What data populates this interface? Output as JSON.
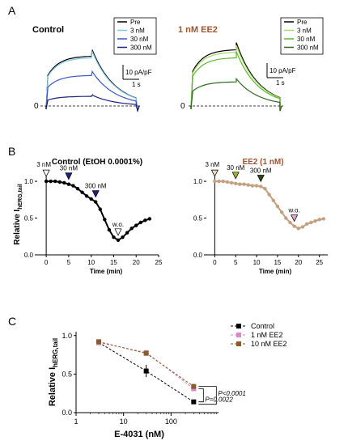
{
  "panels": {
    "A": {
      "letter": "A"
    },
    "B": {
      "letter": "B"
    },
    "C": {
      "letter": "C"
    }
  },
  "panelA": {
    "left": {
      "title": "Control"
    },
    "right": {
      "title": "1 nM EE2"
    },
    "legend_left": [
      "Pre",
      "3 nM",
      "30 nM",
      "300 nM"
    ],
    "legend_right": [
      "Pre",
      "3 nM",
      "30 nM",
      "300 nM"
    ],
    "scale_current": "10 pA/pF",
    "scale_time": "1 s",
    "zero_label": "0",
    "colors": {
      "control": [
        "#000000",
        "#7ec8e3",
        "#3a55c8",
        "#1a237e"
      ],
      "ee2": [
        "#000000",
        "#a6d96a",
        "#5cb82e",
        "#2e6b1e"
      ]
    }
  },
  "chart_data": [
    {
      "type": "line",
      "title": "Control (EtOH 0.0001%)",
      "ylabel": "Relative I",
      "ylabel_sub": "hERG,tail",
      "xlabel": "Time (min)",
      "xlim": [
        -2,
        25
      ],
      "ylim": [
        0,
        1.1
      ],
      "xticks": [
        0,
        5,
        10,
        15,
        20,
        25
      ],
      "yticks": [
        0.0,
        0.5,
        1.0
      ],
      "ytick_labels": [
        "0.0",
        "0.5",
        "1.0"
      ],
      "series": [
        {
          "color": "#000000",
          "x": [
            0,
            1,
            2,
            3,
            4,
            5,
            6,
            7,
            8,
            9,
            10,
            11,
            12,
            13,
            14,
            15,
            16,
            17,
            18,
            19,
            20,
            21,
            22,
            23
          ],
          "y": [
            1.0,
            1.0,
            1.0,
            0.99,
            0.98,
            0.96,
            0.94,
            0.9,
            0.85,
            0.8,
            0.76,
            0.72,
            0.62,
            0.48,
            0.34,
            0.24,
            0.2,
            0.24,
            0.3,
            0.36,
            0.4,
            0.44,
            0.47,
            0.49
          ]
        }
      ],
      "annotations": [
        {
          "label": "3 nM",
          "x": 0,
          "color": "#ffffff"
        },
        {
          "label": "30 nM",
          "x": 5,
          "color": "#1a237e"
        },
        {
          "label": "300 nM",
          "x": 11,
          "color": "#1a237e"
        },
        {
          "label": "w.o.",
          "x": 16,
          "color": "#ffffff"
        }
      ]
    },
    {
      "type": "line",
      "title": "EE2 (1 nM)",
      "xlabel": "Time (min)",
      "xlim": [
        -2,
        27
      ],
      "ylim": [
        0,
        1.1
      ],
      "xticks": [
        0,
        5,
        10,
        15,
        20,
        25
      ],
      "yticks": [
        0.0,
        0.5,
        1.0
      ],
      "ytick_labels": [
        "0.0",
        "0.5",
        "1.0"
      ],
      "series": [
        {
          "color": "#c2a080",
          "x": [
            0,
            1,
            2,
            3,
            4,
            5,
            6,
            7,
            8,
            9,
            10,
            11,
            12,
            13,
            14,
            15,
            16,
            17,
            18,
            19,
            20,
            21,
            22,
            23,
            24,
            25,
            26
          ],
          "y": [
            1.0,
            1.0,
            1.0,
            0.99,
            0.98,
            0.97,
            0.96,
            0.96,
            0.95,
            0.94,
            0.94,
            0.93,
            0.9,
            0.82,
            0.74,
            0.66,
            0.58,
            0.5,
            0.44,
            0.39,
            0.36,
            0.38,
            0.42,
            0.44,
            0.46,
            0.48,
            0.49
          ]
        }
      ],
      "annotations": [
        {
          "label": "3 nM",
          "x": 0,
          "color": "#f3d9c4"
        },
        {
          "label": "30 nM",
          "x": 5,
          "color": "#a3b23b"
        },
        {
          "label": "300 nM",
          "x": 11,
          "color": "#2e4a1a"
        },
        {
          "label": "w.o.",
          "x": 19,
          "color": "#e8a4cc"
        }
      ]
    },
    {
      "type": "line",
      "xlabel": "E-4031 (nM)",
      "ylabel": "Relative I",
      "ylabel_sub": "hERG,tail",
      "xscale": "log",
      "xlim": [
        1,
        1000
      ],
      "ylim": [
        0,
        1.05
      ],
      "xticks": [
        1,
        10,
        100
      ],
      "yticks": [
        0.0,
        0.5,
        1.0
      ],
      "ytick_labels": [
        "0.0",
        "0.5",
        "1.0"
      ],
      "series": [
        {
          "name": "Control",
          "color": "#000000",
          "x": [
            3,
            30,
            300
          ],
          "y": [
            0.91,
            0.54,
            0.14
          ],
          "err": [
            0.03,
            0.08,
            0.02
          ]
        },
        {
          "name": "1 nM EE2",
          "color": "#d48ac8",
          "x": [
            3,
            30,
            300
          ],
          "y": [
            0.91,
            0.78,
            0.31
          ],
          "err": [
            0.02,
            0.03,
            0.03
          ]
        },
        {
          "name": "10 nM EE2",
          "color": "#8b5a2b",
          "x": [
            3,
            30,
            300
          ],
          "y": [
            0.92,
            0.77,
            0.34
          ],
          "err": [
            0.02,
            0.03,
            0.03
          ]
        }
      ],
      "legend_placement": "top-right",
      "significance": [
        {
          "label": "P=0.0022"
        },
        {
          "label": "P<0.0001"
        }
      ]
    }
  ]
}
